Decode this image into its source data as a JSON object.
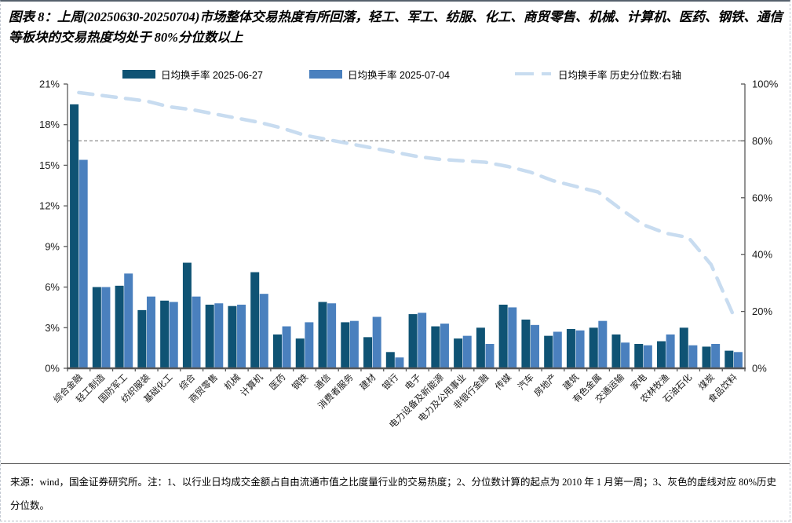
{
  "figure": {
    "title": "图表 8：上周(20250630-20250704)市场整体交易热度有所回落，轻工、军工、纺服、化工、商贸零售、机械、计算机、医药、钢铁、通信等板块的交易热度均处于 80%分位数以上",
    "source_note": "来源：wind，国金证券研究所。注：1、以行业日均成交金额占自由流通市值之比度量行业的交易热度；2、分位数计算的起点为 2010 年 1 月第一周；3、灰色的虚线对应 80%历史分位数。"
  },
  "colors": {
    "bar_dark": "#0F5374",
    "bar_light": "#4A80BE",
    "percentile_line": "#C8DCF0",
    "reference_dash": "#8C8C8C",
    "axis": "#595959"
  },
  "chart_data": {
    "type": "bar",
    "title": "",
    "xlabel": "",
    "ylabel": "",
    "grid": false,
    "legend_position": "top",
    "categories": [
      "综合金融",
      "轻工制造",
      "国防军工",
      "纺织服装",
      "基础化工",
      "综合",
      "商贸零售",
      "机械",
      "计算机",
      "医药",
      "钢铁",
      "通信",
      "消费者服务",
      "建材",
      "银行",
      "电子",
      "电力设备及新能源",
      "电力及公用事业",
      "非银行金融",
      "传媒",
      "汽车",
      "房地产",
      "建筑",
      "有色金属",
      "交通运输",
      "家电",
      "农林牧渔",
      "石油石化",
      "煤炭",
      "食品饮料"
    ],
    "series": [
      {
        "name": "日均换手率 2025-06-27",
        "type": "bar",
        "axis": "left",
        "color": "#0F5374",
        "values": [
          19.5,
          6.0,
          6.1,
          4.3,
          5.0,
          7.8,
          4.7,
          4.6,
          7.1,
          2.5,
          2.2,
          4.9,
          3.4,
          2.3,
          1.2,
          4.0,
          3.1,
          2.2,
          3.0,
          4.7,
          3.6,
          2.4,
          2.9,
          3.0,
          2.5,
          1.8,
          2.0,
          3.0,
          1.6,
          1.3
        ]
      },
      {
        "name": "日均换手率 2025-07-04",
        "type": "bar",
        "axis": "left",
        "color": "#4A80BE",
        "values": [
          15.4,
          6.0,
          7.0,
          5.3,
          4.9,
          5.3,
          4.8,
          4.7,
          5.5,
          3.1,
          3.4,
          4.8,
          3.5,
          3.8,
          0.8,
          4.1,
          3.3,
          2.4,
          1.8,
          4.5,
          3.2,
          2.7,
          2.8,
          3.5,
          1.9,
          1.7,
          2.5,
          1.7,
          1.8,
          1.2
        ]
      },
      {
        "name": "日均换手率 历史分位数:右轴",
        "type": "line",
        "style": "dashed",
        "axis": "right",
        "color": "#C8DCF0",
        "values": [
          97,
          96,
          95,
          94,
          92,
          91,
          89.5,
          88,
          86.5,
          84.5,
          82,
          80.5,
          79,
          77.5,
          76,
          74.5,
          73.5,
          73,
          72.5,
          71,
          69,
          66,
          64,
          62,
          56,
          50.5,
          47.5,
          46,
          36.5,
          18.5
        ]
      }
    ],
    "left_axis": {
      "min": 0,
      "max": 21,
      "ticks": [
        "21%",
        "18%",
        "15%",
        "12%",
        "9%",
        "6%",
        "3%",
        "0%"
      ]
    },
    "right_axis": {
      "min": 0,
      "max": 100,
      "ticks": [
        "100%",
        "80%",
        "60%",
        "40%",
        "20%",
        "0%"
      ]
    },
    "reference_line": {
      "axis": "right",
      "value": 80,
      "style": "dashed",
      "color": "#8C8C8C",
      "meaning": "80%历史分位数"
    }
  }
}
